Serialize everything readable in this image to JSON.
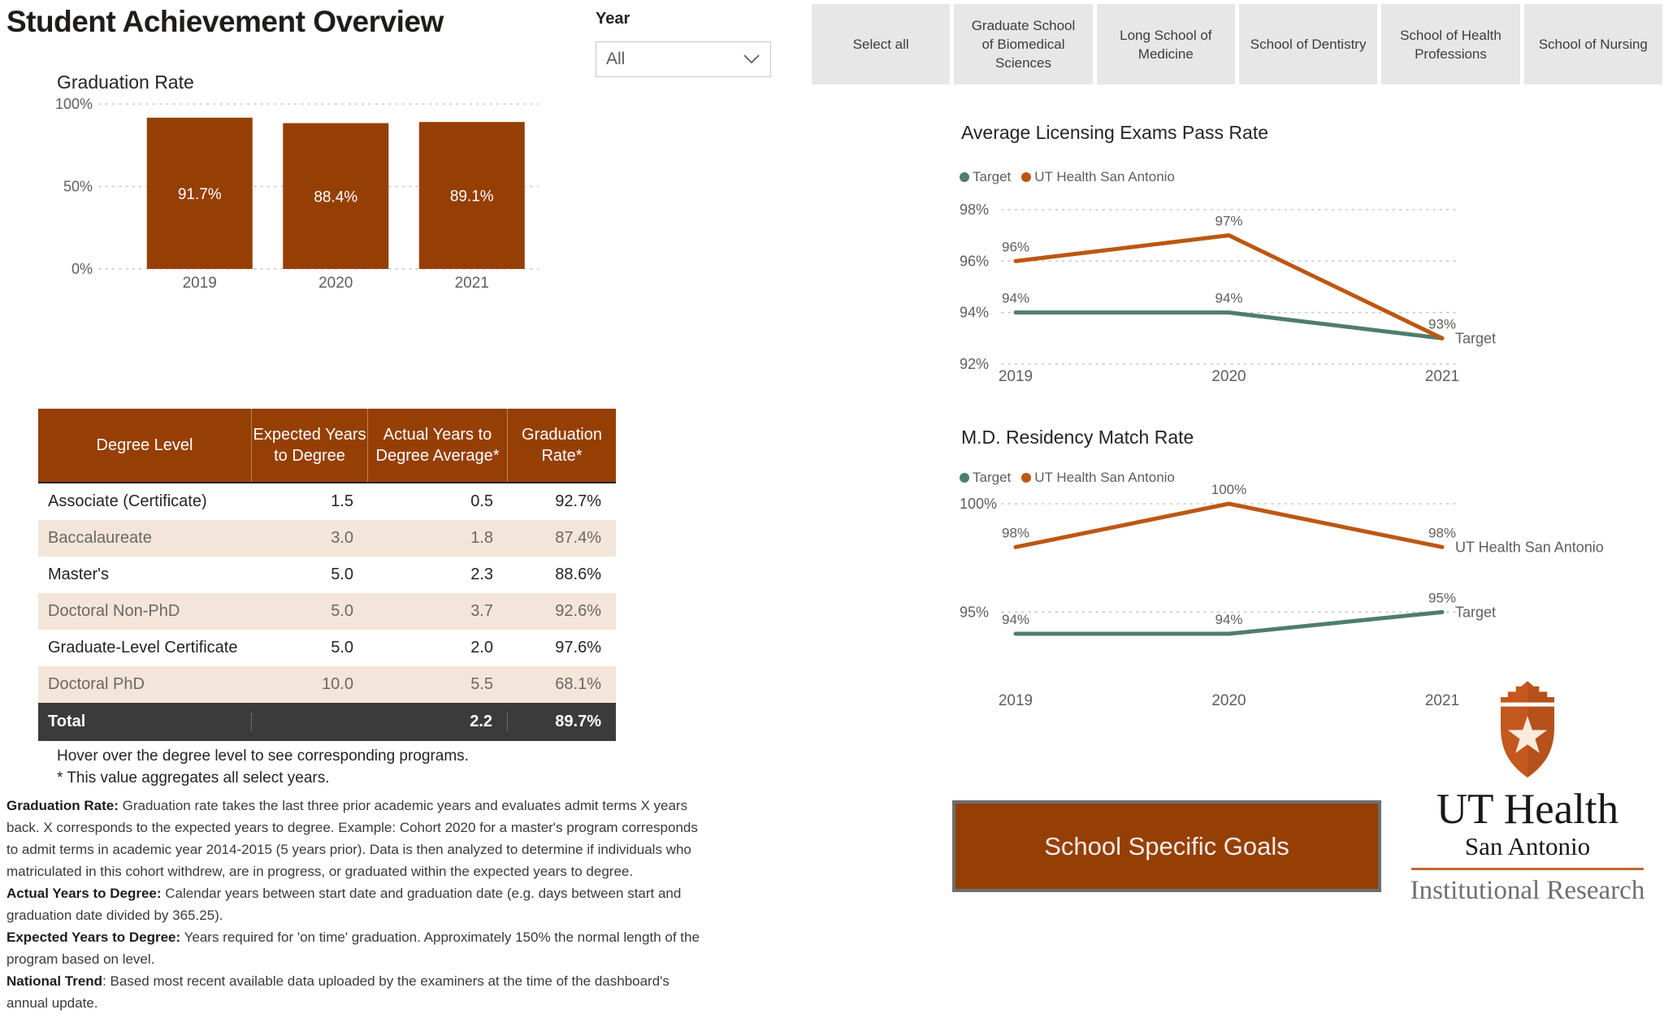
{
  "header": {
    "title": "Student Achievement Overview"
  },
  "year_filter": {
    "label": "Year",
    "value": "All"
  },
  "school_filters": [
    "Select all",
    "Graduate School of Biomedical Sciences",
    "Long School of Medicine",
    "School of Dentistry",
    "School of Health Professions",
    "School of Nursing"
  ],
  "table": {
    "columns": [
      "Degree Level",
      "Expected Years to Degree",
      "Actual Years to Degree Average*",
      "Graduation Rate*"
    ],
    "rows": [
      [
        "Associate (Certificate)",
        "1.5",
        "0.5",
        "92.7%"
      ],
      [
        "Baccalaureate",
        "3.0",
        "1.8",
        "87.4%"
      ],
      [
        "Master's",
        "5.0",
        "2.3",
        "88.6%"
      ],
      [
        "Doctoral Non-PhD",
        "5.0",
        "3.7",
        "92.6%"
      ],
      [
        "Graduate-Level Certificate",
        "5.0",
        "2.0",
        "97.6%"
      ],
      [
        "Doctoral PhD",
        "10.0",
        "5.5",
        "68.1%"
      ]
    ],
    "total_row": [
      "Total",
      "",
      "2.2",
      "89.7%"
    ],
    "footnote1": "Hover over the degree level to see corresponding programs.",
    "footnote2": "* This value aggregates all select years."
  },
  "notes": [
    {
      "label": "Graduation Rate:",
      "text": " Graduation rate takes the last three prior academic years and evaluates admit terms X years back. X corresponds to the expected years to degree. Example: Cohort 2020 for a master's program corresponds to admit terms in academic year 2014-2015 (5 years prior). Data is then analyzed to determine if individuals who matriculated in this cohort withdrew, are in progress, or graduated within the expected years to degree."
    },
    {
      "label": "Actual Years to Degree:",
      "text": " Calendar years between start date and graduation date (e.g. days between start and graduation date divided by 365.25)."
    },
    {
      "label": "Expected Years to Degree:",
      "text": " Years required for 'on time' graduation. Approximately 150% the normal length of the program based on level."
    },
    {
      "label": "National Trend",
      "text": ": Based most recent available data uploaded by the examiners at the time of the dashboard's annual update."
    }
  ],
  "goals_button": {
    "label": "School Specific Goals"
  },
  "logo": {
    "line1": "UT Health",
    "line2": "San Antonio",
    "line3": "Institutional Research"
  },
  "colors": {
    "accent_brown": "#963F04",
    "line_orange": "#BC5712",
    "line_green": "#4E7D6E",
    "beige_row": "#F3E5DA",
    "total_row_bg": "#3B3B3B",
    "filter_button_bg": "#E7E7E7",
    "grid_dot": "#C8C6C4",
    "tick_text": "#605E5C",
    "logo_orange": "#C4581E"
  },
  "chart_data": [
    {
      "id": "graduation_rate",
      "type": "bar",
      "title": "Graduation Rate",
      "categories": [
        "2019",
        "2020",
        "2021"
      ],
      "values": [
        91.7,
        88.4,
        89.1
      ],
      "value_labels": [
        "91.7%",
        "88.4%",
        "89.1%"
      ],
      "xlabel": "",
      "ylabel": "",
      "ylim": [
        0,
        100
      ],
      "yticks": [
        {
          "value": 100,
          "label": "100%"
        },
        {
          "value": 50,
          "label": "50%"
        },
        {
          "value": 0,
          "label": "0%"
        }
      ],
      "grid": "dotted"
    },
    {
      "id": "licensing_pass_rate",
      "type": "line",
      "title": "Average Licensing Exams Pass Rate",
      "categories": [
        "2019",
        "2020",
        "2021"
      ],
      "ylim": [
        92,
        98
      ],
      "yticks": [
        {
          "value": 98,
          "label": "98%"
        },
        {
          "value": 96,
          "label": "96%"
        },
        {
          "value": 94,
          "label": "94%"
        },
        {
          "value": 92,
          "label": "92%"
        }
      ],
      "grid": "dotted",
      "legend_position": "top",
      "series": [
        {
          "name": "Target",
          "color": "#4E7D6E",
          "values": [
            94,
            94,
            93
          ],
          "point_labels": [
            "94%",
            "94%",
            ""
          ],
          "end_label": "Target"
        },
        {
          "name": "UT Health San Antonio",
          "color": "#BC5712",
          "values": [
            96,
            97,
            93
          ],
          "point_labels": [
            "96%",
            "97%",
            "93%"
          ],
          "end_label": ""
        }
      ]
    },
    {
      "id": "md_residency_match",
      "type": "line",
      "title": "M.D. Residency Match Rate",
      "categories": [
        "2019",
        "2020",
        "2021"
      ],
      "ylim": [
        94,
        100
      ],
      "yticks": [
        {
          "value": 100,
          "label": "100%"
        },
        {
          "value": 95,
          "label": "95%"
        }
      ],
      "grid": "dotted",
      "legend_position": "top",
      "series": [
        {
          "name": "Target",
          "color": "#4E7D6E",
          "values": [
            94,
            94,
            95
          ],
          "point_labels": [
            "94%",
            "94%",
            "95%"
          ],
          "end_label": "Target"
        },
        {
          "name": "UT Health San Antonio",
          "color": "#BC5712",
          "values": [
            98,
            100,
            98
          ],
          "point_labels": [
            "98%",
            "100%",
            "98%"
          ],
          "end_label": "UT Health San Antonio"
        }
      ]
    }
  ]
}
